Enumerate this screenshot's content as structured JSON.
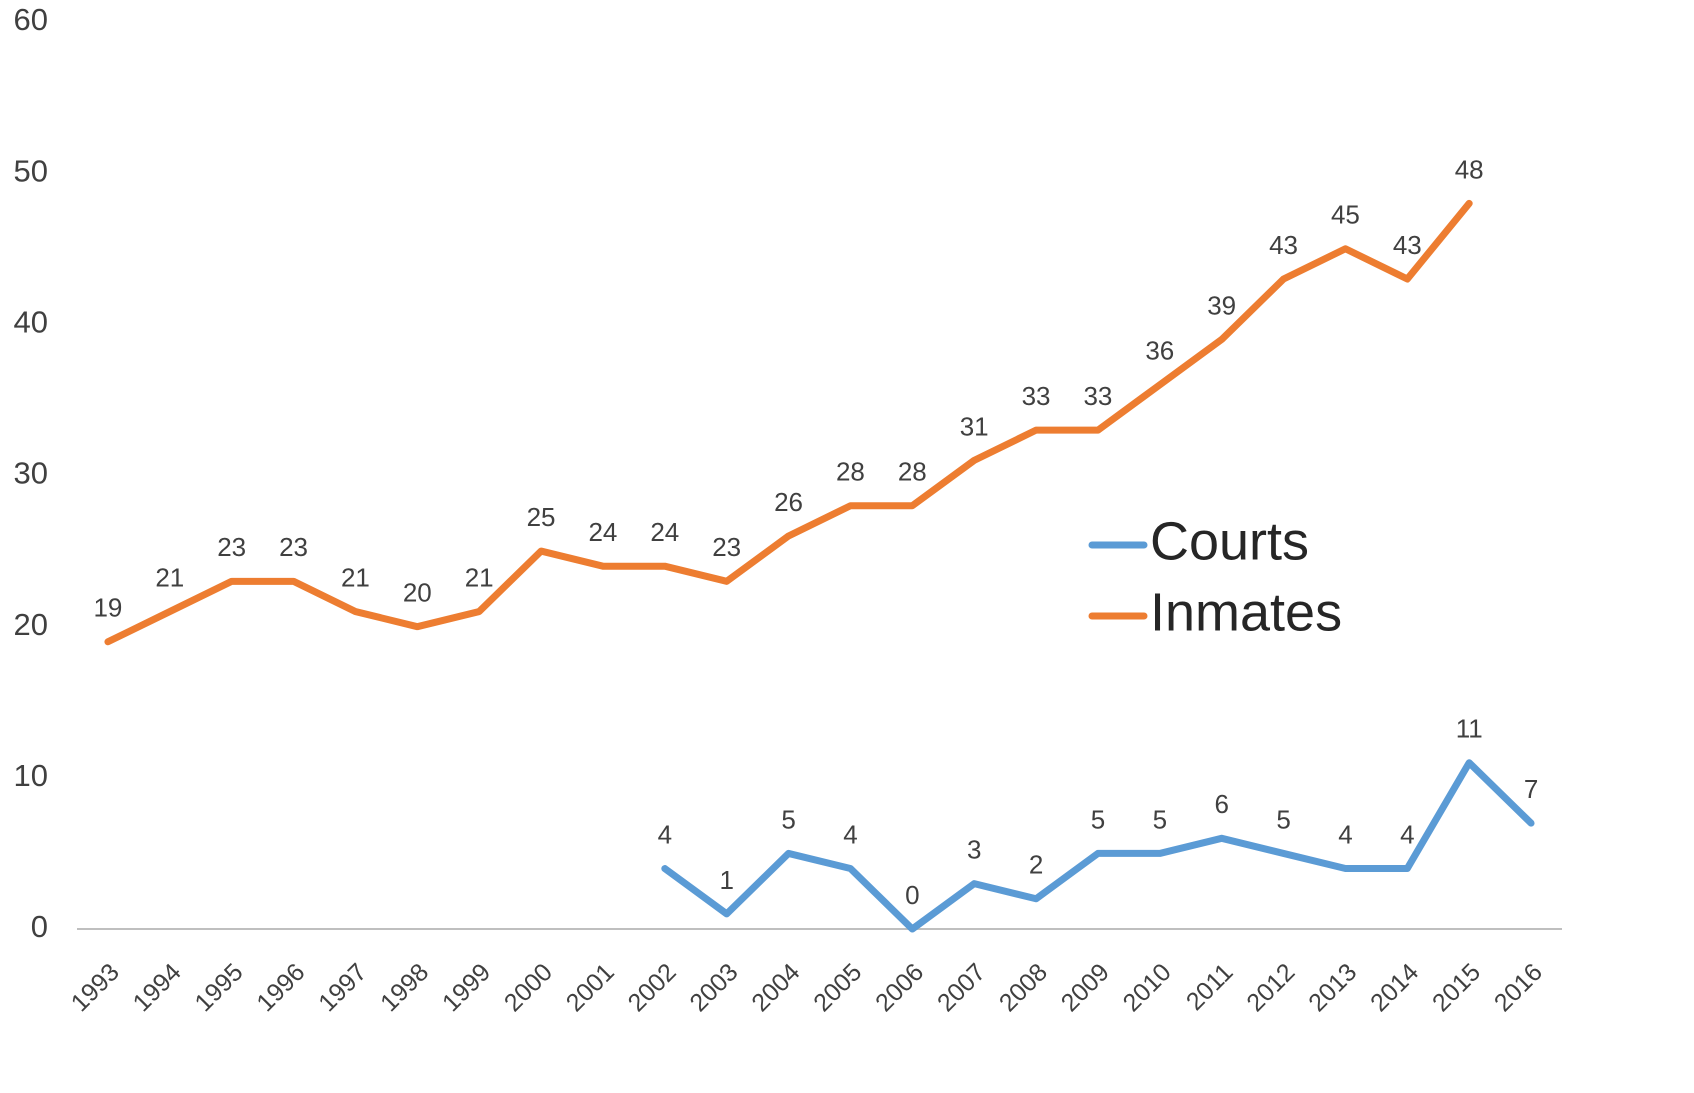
{
  "chart_data": {
    "type": "line",
    "categories": [
      "1993",
      "1994",
      "1995",
      "1996",
      "1997",
      "1998",
      "1999",
      "2000",
      "2001",
      "2002",
      "2003",
      "2004",
      "2005",
      "2006",
      "2007",
      "2008",
      "2009",
      "2010",
      "2011",
      "2012",
      "2013",
      "2014",
      "2015",
      "2016"
    ],
    "series": [
      {
        "name": "Courts",
        "color": "#5b9bd5",
        "values": [
          null,
          null,
          null,
          null,
          null,
          null,
          null,
          null,
          null,
          4,
          1,
          5,
          4,
          0,
          3,
          2,
          5,
          5,
          6,
          5,
          4,
          4,
          11,
          7
        ]
      },
      {
        "name": "Inmates",
        "color": "#ed7d31",
        "values": [
          19,
          21,
          23,
          23,
          21,
          20,
          21,
          25,
          24,
          24,
          23,
          26,
          28,
          28,
          31,
          33,
          33,
          36,
          39,
          43,
          45,
          43,
          48,
          null
        ]
      }
    ],
    "ylim": [
      0,
      60
    ],
    "yticks": [
      0,
      10,
      20,
      30,
      40,
      50,
      60
    ],
    "grid": false,
    "legend": "right"
  }
}
